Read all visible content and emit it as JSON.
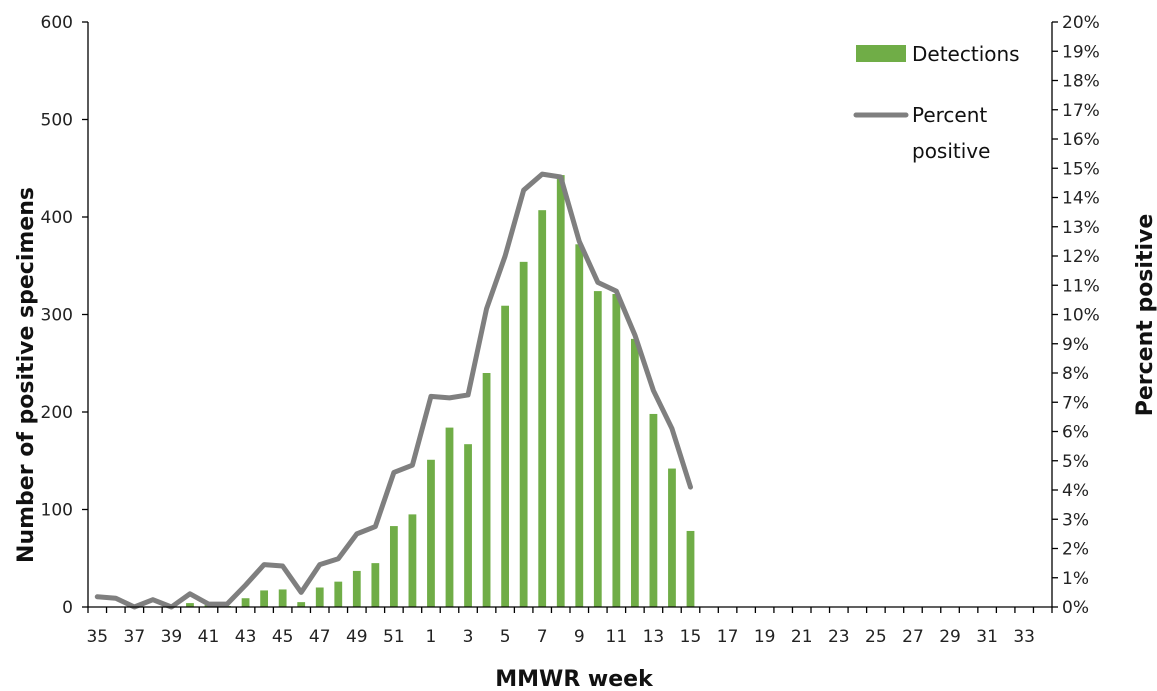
{
  "chart_data": {
    "type": "bar",
    "categories": [
      "35",
      "36",
      "37",
      "38",
      "39",
      "40",
      "41",
      "42",
      "43",
      "44",
      "45",
      "46",
      "47",
      "48",
      "49",
      "50",
      "51",
      "52",
      "1",
      "2",
      "3",
      "4",
      "5",
      "6",
      "7",
      "8",
      "9",
      "10",
      "11",
      "12",
      "13",
      "14",
      "15",
      "16",
      "17",
      "18",
      "19",
      "20",
      "21",
      "22",
      "23",
      "24",
      "25",
      "26",
      "27",
      "28",
      "29",
      "30",
      "31",
      "32",
      "33",
      "34"
    ],
    "x_tick_labels": [
      "35",
      "37",
      "39",
      "41",
      "43",
      "45",
      "47",
      "49",
      "51",
      "1",
      "3",
      "5",
      "7",
      "9",
      "11",
      "13",
      "15",
      "17",
      "19",
      "21",
      "23",
      "25",
      "27",
      "29",
      "31",
      "33"
    ],
    "xlabel": "MMWR week",
    "ylabel": "Number of positive specimens",
    "y2label": "Percent positive",
    "ylim": [
      0,
      600
    ],
    "y_ticks": [
      0,
      100,
      200,
      300,
      400,
      500,
      600
    ],
    "y2lim": [
      0,
      20
    ],
    "y2_ticks": [
      "0%",
      "1%",
      "2%",
      "3%",
      "4%",
      "5%",
      "6%",
      "7%",
      "8%",
      "9%",
      "10%",
      "11%",
      "12%",
      "13%",
      "14%",
      "15%",
      "16%",
      "17%",
      "18%",
      "19%",
      "20%"
    ],
    "series": [
      {
        "name": "Detections",
        "type": "bar",
        "axis": "left",
        "color": "#70ad47",
        "values": [
          0,
          0,
          0,
          0,
          0,
          4,
          2,
          1,
          9,
          17,
          18,
          5,
          20,
          26,
          37,
          45,
          83,
          95,
          151,
          184,
          167,
          240,
          309,
          354,
          407,
          443,
          372,
          324,
          321,
          275,
          198,
          142,
          78,
          null,
          null,
          null,
          null,
          null,
          null,
          null,
          null,
          null,
          null,
          null,
          null,
          null,
          null,
          null,
          null,
          null,
          null,
          null
        ]
      },
      {
        "name": "Percent positive",
        "type": "line",
        "axis": "right",
        "color": "#7f7f7f",
        "values": [
          0.35,
          0.3,
          0.0,
          0.25,
          0.0,
          0.45,
          0.1,
          0.1,
          0.75,
          1.45,
          1.4,
          0.5,
          1.45,
          1.65,
          2.5,
          2.75,
          4.6,
          4.85,
          7.2,
          7.15,
          7.25,
          10.2,
          12.0,
          14.25,
          14.8,
          14.7,
          12.5,
          11.1,
          10.8,
          9.3,
          7.4,
          6.1,
          4.1,
          null,
          null,
          null,
          null,
          null,
          null,
          null,
          null,
          null,
          null,
          null,
          null,
          null,
          null,
          null,
          null,
          null,
          null,
          null
        ]
      }
    ],
    "legend": "top-right",
    "grid": false
  }
}
